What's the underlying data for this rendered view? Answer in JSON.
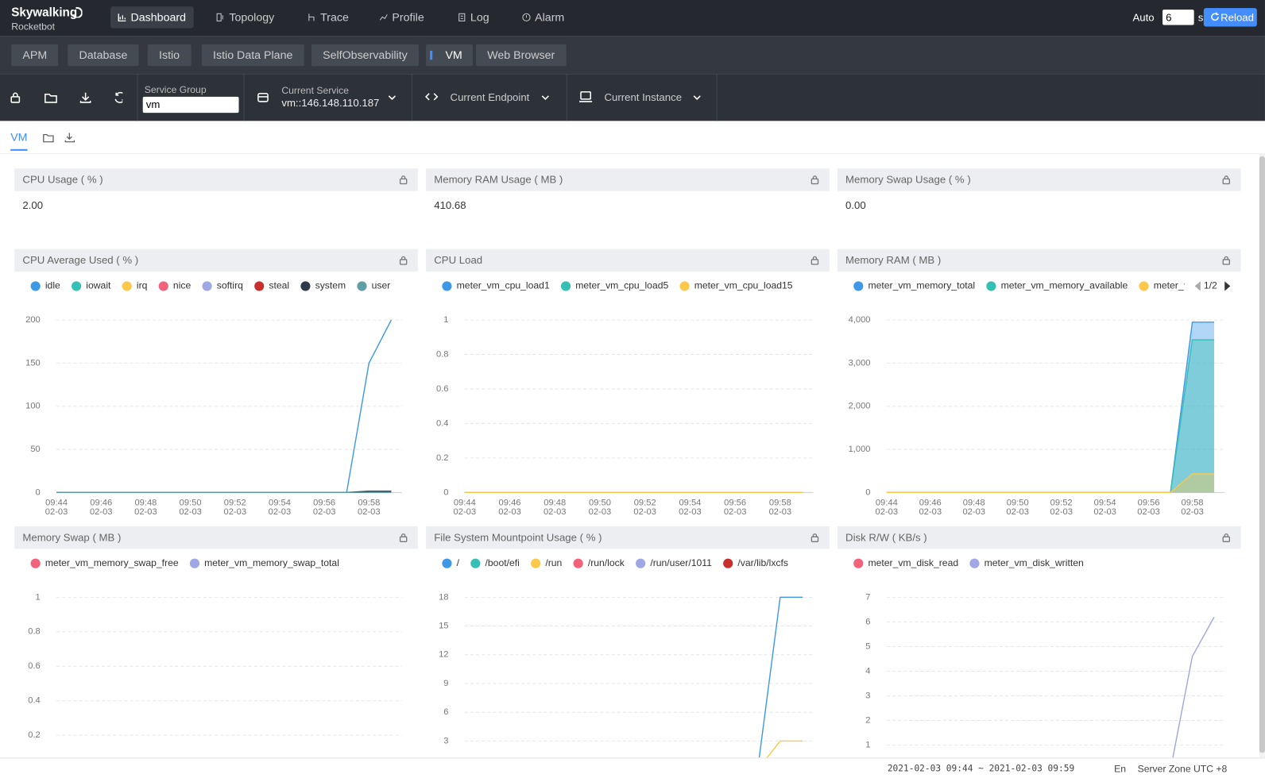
{
  "header": {
    "logo_title": "Skywalking",
    "logo_subtitle": "Rocketbot",
    "nav": [
      "Dashboard",
      "Topology",
      "Trace",
      "Profile",
      "Log",
      "Alarm"
    ],
    "auto_label": "Auto",
    "interval": "6",
    "interval_unit": "s",
    "reload": "Reload"
  },
  "layers": [
    "APM",
    "Database",
    "Istio",
    "Istio Data Plane",
    "SelfObservability",
    "VM",
    "Web Browser"
  ],
  "toolbar": {
    "service_group_label": "Service Group",
    "service_group": "vm",
    "current_service_label": "Current Service",
    "current_service": "vm::146.148.110.187",
    "current_endpoint_label": "Current Endpoint",
    "current_instance_label": "Current Instance"
  },
  "dashboard_tab": "VM",
  "value_panels": [
    {
      "title": "CPU Usage ( % )",
      "value": "2.00"
    },
    {
      "title": "Memory RAM Usage ( MB )",
      "value": "410.68"
    },
    {
      "title": "Memory Swap Usage ( % )",
      "value": "0.00"
    }
  ],
  "chart_data": [
    {
      "type": "line",
      "title": "CPU Average Used ( % )",
      "categories": [
        "09:44\n02-03",
        null,
        "09:46\n02-03",
        null,
        "09:48\n02-03",
        null,
        "09:50\n02-03",
        null,
        "09:52\n02-03",
        null,
        "09:54\n02-03",
        null,
        "09:56\n02-03",
        null,
        "09:58\n02-03",
        null
      ],
      "series": [
        {
          "name": "idle",
          "color": "#3d99e8",
          "values": [
            0,
            0,
            0,
            0,
            0,
            0,
            0,
            0,
            0,
            0,
            0,
            0,
            0,
            0,
            150,
            200
          ]
        },
        {
          "name": "iowait",
          "color": "#35c0b5",
          "values": [
            0,
            0,
            0,
            0,
            0,
            0,
            0,
            0,
            0,
            0,
            0,
            0,
            0,
            0,
            0,
            0
          ]
        },
        {
          "name": "irq",
          "color": "#fbc84a",
          "values": [
            0,
            0,
            0,
            0,
            0,
            0,
            0,
            0,
            0,
            0,
            0,
            0,
            0,
            0,
            0,
            0
          ]
        },
        {
          "name": "nice",
          "color": "#f2637b",
          "values": [
            0,
            0,
            0,
            0,
            0,
            0,
            0,
            0,
            0,
            0,
            0,
            0,
            0,
            0,
            0,
            0
          ]
        },
        {
          "name": "softirq",
          "color": "#9fa7e4",
          "values": [
            0,
            0,
            0,
            0,
            0,
            0,
            0,
            0,
            0,
            0,
            0,
            0,
            0,
            0,
            0,
            0
          ]
        },
        {
          "name": "steal",
          "color": "#c8302e",
          "values": [
            0,
            0,
            0,
            0,
            0,
            0,
            0,
            0,
            0,
            0,
            0,
            0,
            0,
            0,
            0,
            0
          ]
        },
        {
          "name": "system",
          "color": "#2f3a4a",
          "values": [
            0,
            0,
            0,
            0,
            0,
            0,
            0,
            0,
            0,
            0,
            0,
            0,
            0,
            0,
            1.5,
            1.5
          ]
        },
        {
          "name": "user",
          "color": "#5e9ea6",
          "values": [
            0,
            0,
            0,
            0,
            0,
            0,
            0,
            0,
            0,
            0,
            0,
            0,
            0,
            0,
            0,
            0
          ]
        }
      ],
      "ylim": [
        0,
        200
      ],
      "yticks": [
        0,
        50,
        100,
        150,
        200
      ],
      "grid": true
    },
    {
      "type": "line",
      "title": "CPU Load",
      "categories": [
        "09:44\n02-03",
        null,
        "09:46\n02-03",
        null,
        "09:48\n02-03",
        null,
        "09:50\n02-03",
        null,
        "09:52\n02-03",
        null,
        "09:54\n02-03",
        null,
        "09:56\n02-03",
        null,
        "09:58\n02-03",
        null
      ],
      "series": [
        {
          "name": "meter_vm_cpu_load1",
          "color": "#3d99e8",
          "values": [
            0,
            0,
            0,
            0,
            0,
            0,
            0,
            0,
            0,
            0,
            0,
            0,
            0,
            0,
            0,
            0
          ]
        },
        {
          "name": "meter_vm_cpu_load5",
          "color": "#35c0b5",
          "values": [
            0,
            0,
            0,
            0,
            0,
            0,
            0,
            0,
            0,
            0,
            0,
            0,
            0,
            0,
            0,
            0
          ]
        },
        {
          "name": "meter_vm_cpu_load15",
          "color": "#fbc84a",
          "values": [
            0,
            0,
            0,
            0,
            0,
            0,
            0,
            0,
            0,
            0,
            0,
            0,
            0,
            0,
            0,
            0
          ]
        }
      ],
      "ylim": [
        0,
        1
      ],
      "yticks": [
        0,
        0.2,
        0.4,
        0.6,
        0.8,
        1
      ],
      "grid": true
    },
    {
      "type": "area",
      "title": "Memory RAM ( MB )",
      "categories": [
        "09:44\n02-03",
        null,
        "09:46\n02-03",
        null,
        "09:48\n02-03",
        null,
        "09:50\n02-03",
        null,
        "09:52\n02-03",
        null,
        "09:54\n02-03",
        null,
        "09:56\n02-03",
        null,
        "09:58\n02-03",
        null
      ],
      "series": [
        {
          "name": "meter_vm_memory_total",
          "color": "#3d99e8",
          "values": [
            0,
            0,
            0,
            0,
            0,
            0,
            0,
            0,
            0,
            0,
            0,
            0,
            0,
            0,
            3950,
            3950
          ]
        },
        {
          "name": "meter_vm_memory_available",
          "color": "#35c0b5",
          "values": [
            0,
            0,
            0,
            0,
            0,
            0,
            0,
            0,
            0,
            0,
            0,
            0,
            0,
            0,
            3540,
            3540
          ]
        },
        {
          "name": "meter_vm",
          "color": "#fbc84a",
          "values": [
            0,
            0,
            0,
            0,
            0,
            0,
            0,
            0,
            0,
            0,
            0,
            0,
            0,
            0,
            430,
            430
          ]
        }
      ],
      "legend_page": "1/2",
      "ylim": [
        0,
        4000
      ],
      "yticks": [
        0,
        {
          "value": 1000,
          "label": "1,000"
        },
        {
          "value": 2000,
          "label": "2,000"
        },
        {
          "value": 3000,
          "label": "3,000"
        },
        {
          "value": 4000,
          "label": "4,000"
        }
      ],
      "grid": true
    },
    {
      "type": "line",
      "title": "Memory Swap ( MB )",
      "categories": [
        null,
        null,
        null,
        null,
        null,
        null,
        null,
        null,
        null,
        null,
        null,
        null,
        null,
        null,
        null,
        null
      ],
      "series": [
        {
          "name": "meter_vm_memory_swap_free",
          "color": "#f2637b",
          "values": [
            0,
            0,
            0,
            0,
            0,
            0,
            0,
            0,
            0,
            0,
            0,
            0,
            0,
            0,
            0,
            0
          ]
        },
        {
          "name": "meter_vm_memory_swap_total",
          "color": "#9fa7e4",
          "values": [
            0,
            0,
            0,
            0,
            0,
            0,
            0,
            0,
            0,
            0,
            0,
            0,
            0,
            0,
            0,
            0
          ]
        }
      ],
      "ylim": [
        0,
        1
      ],
      "yticks": [
        0.2,
        0.4,
        0.6,
        0.8,
        1
      ],
      "grid": true
    },
    {
      "type": "line",
      "title": "File System Mountpoint Usage ( % )",
      "categories": [
        null,
        null,
        null,
        null,
        null,
        null,
        null,
        null,
        null,
        null,
        null,
        null,
        null,
        null,
        null,
        null
      ],
      "series": [
        {
          "name": "/",
          "color": "#3d99e8",
          "values": [
            0,
            0,
            0,
            0,
            0,
            0,
            0,
            0,
            0,
            0,
            0,
            0,
            0,
            0,
            18,
            18
          ]
        },
        {
          "name": "/boot/efi",
          "color": "#35c0b5",
          "values": [
            0,
            0,
            0,
            0,
            0,
            0,
            0,
            0,
            0,
            0,
            0,
            0,
            0,
            0,
            0,
            0
          ]
        },
        {
          "name": "/run",
          "color": "#fbc84a",
          "values": [
            0,
            0,
            0,
            0,
            0,
            0,
            0,
            0,
            0,
            0,
            0,
            0,
            0,
            0,
            3,
            3
          ]
        },
        {
          "name": "/run/lock",
          "color": "#f2637b",
          "values": [
            0,
            0,
            0,
            0,
            0,
            0,
            0,
            0,
            0,
            0,
            0,
            0,
            0,
            0,
            0,
            0
          ]
        },
        {
          "name": "/run/user/1011",
          "color": "#9fa7e4",
          "values": [
            0,
            0,
            0,
            0,
            0,
            0,
            0,
            0,
            0,
            0,
            0,
            0,
            0,
            0,
            0,
            0
          ]
        },
        {
          "name": "/var/lib/lxcfs",
          "color": "#c8302e",
          "values": [
            0,
            0,
            0,
            0,
            0,
            0,
            0,
            0,
            0,
            0,
            0,
            0,
            0,
            0,
            0,
            0
          ]
        }
      ],
      "ylim": [
        0,
        18
      ],
      "yticks": [
        3,
        6,
        9,
        12,
        15,
        18
      ],
      "grid": true
    },
    {
      "type": "line",
      "title": "Disk R/W ( KB/s )",
      "categories": [
        null,
        null,
        null,
        null,
        null,
        null,
        null,
        null,
        null,
        null,
        null,
        null,
        null,
        null,
        null,
        null
      ],
      "series": [
        {
          "name": "meter_vm_disk_read",
          "color": "#f2637b",
          "values": [
            0,
            0,
            0,
            0,
            0,
            0,
            0,
            0,
            0,
            0,
            0,
            0,
            0,
            0,
            0,
            0
          ]
        },
        {
          "name": "meter_vm_disk_written",
          "color": "#9fa7e4",
          "values": [
            0,
            0,
            0,
            0,
            0,
            0,
            0,
            0,
            0,
            0,
            0,
            0,
            0,
            0,
            4.6,
            6.2
          ]
        }
      ],
      "ylim": [
        0,
        7
      ],
      "yticks": [
        1,
        2,
        3,
        4,
        5,
        6,
        7
      ],
      "grid": true
    }
  ],
  "footer": {
    "time_range": "2021-02-03 09:44 ~ 2021-02-03 09:59",
    "language": "En",
    "server_zone": "Server Zone UTC +8"
  }
}
